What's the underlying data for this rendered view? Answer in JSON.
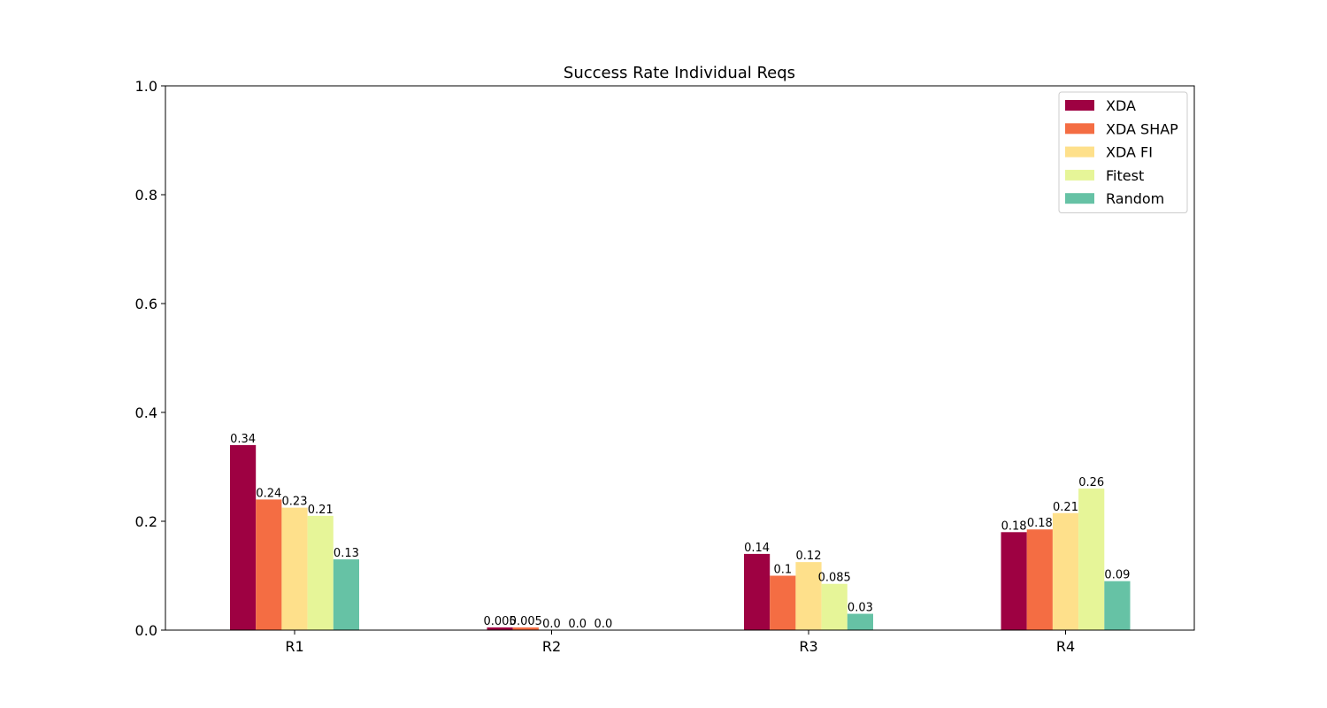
{
  "chart_data": {
    "type": "bar",
    "title": "Success Rate Individual Reqs",
    "xlabel": "",
    "ylabel": "",
    "ylim": [
      0,
      1.0
    ],
    "yticks": [
      "0.0",
      "0.2",
      "0.4",
      "0.6",
      "0.8",
      "1.0"
    ],
    "categories": [
      "R1",
      "R2",
      "R3",
      "R4"
    ],
    "grid": false,
    "legend_position": "top-right",
    "series": [
      {
        "name": "XDA",
        "color": "#9e0142",
        "values": [
          0.34,
          0.005,
          0.14,
          0.18
        ],
        "labels": [
          "0.34",
          "0.005",
          "0.14",
          "0.18"
        ]
      },
      {
        "name": "XDA SHAP",
        "color": "#f46d43",
        "values": [
          0.24,
          0.005,
          0.1,
          0.185
        ],
        "labels": [
          "0.24",
          "0.005",
          "0.1",
          "0.18"
        ]
      },
      {
        "name": "XDA FI",
        "color": "#fee08b",
        "values": [
          0.225,
          0.0,
          0.125,
          0.215
        ],
        "labels": [
          "0.23",
          "0.0",
          "0.12",
          "0.21"
        ]
      },
      {
        "name": "Fitest",
        "color": "#e6f598",
        "values": [
          0.21,
          0.0,
          0.085,
          0.26
        ],
        "labels": [
          "0.21",
          "0.0",
          "0.085",
          "0.26"
        ]
      },
      {
        "name": "Random",
        "color": "#66c2a5",
        "values": [
          0.13,
          0.0,
          0.03,
          0.09
        ],
        "labels": [
          "0.13",
          "0.0",
          "0.03",
          "0.09"
        ]
      }
    ]
  }
}
